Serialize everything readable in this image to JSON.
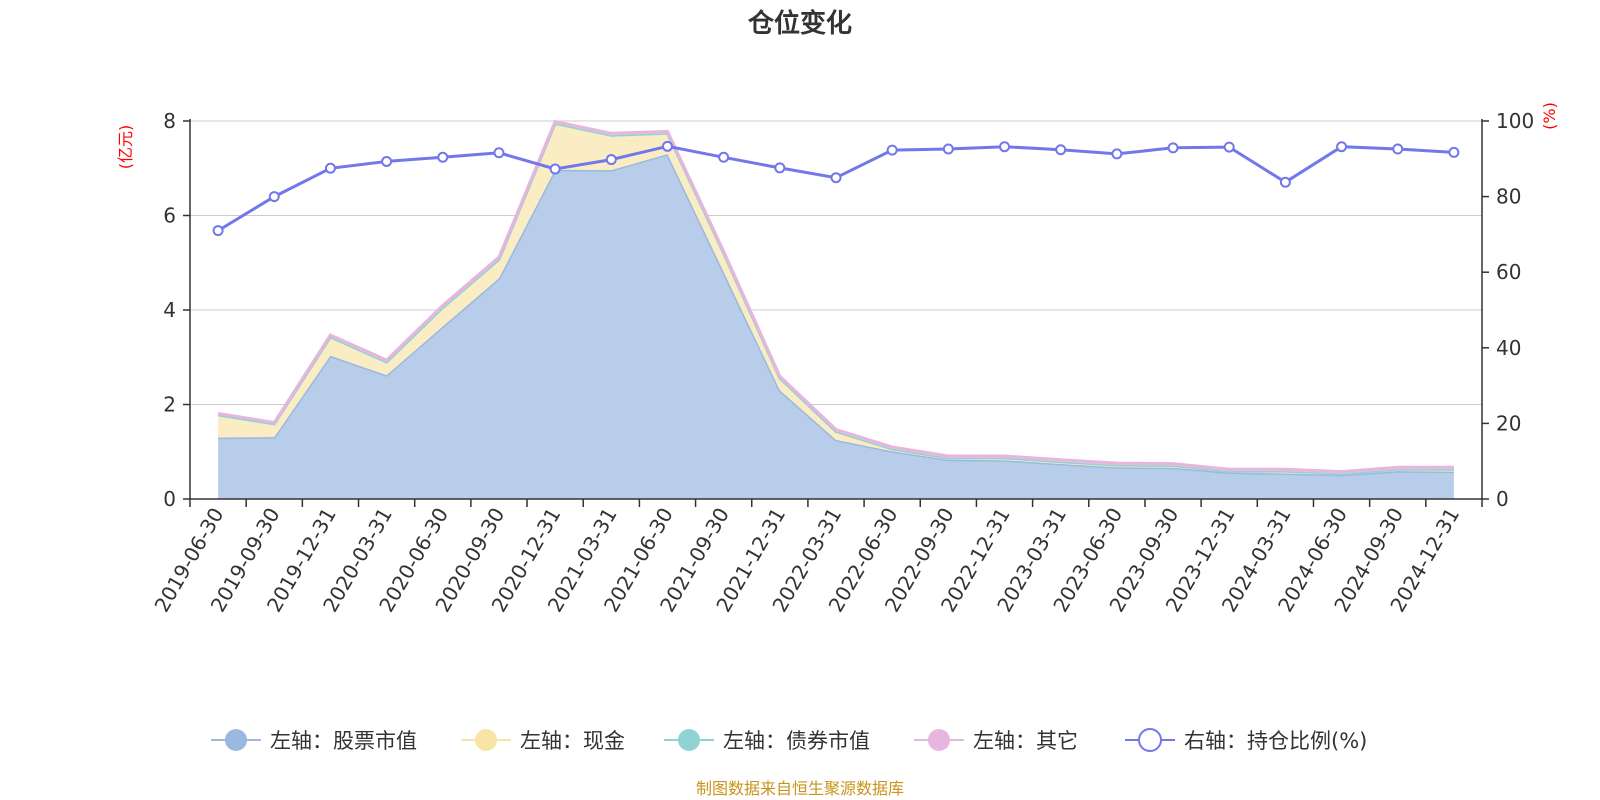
{
  "chart_data": {
    "type": "area",
    "title": "仓位变化",
    "source": "制图数据来自恒生聚源数据库",
    "left_axis": {
      "unit": "(亿元)",
      "ylim": [
        0,
        8
      ],
      "ticks": [
        "0",
        "2",
        "4",
        "6",
        "8"
      ]
    },
    "right_axis": {
      "unit": "(%)",
      "ylim": [
        0,
        100
      ],
      "ticks": [
        "0",
        "20",
        "40",
        "60",
        "80",
        "100"
      ]
    },
    "categories": [
      "2019-06-30",
      "2019-09-30",
      "2019-12-31",
      "2020-03-31",
      "2020-06-30",
      "2020-09-30",
      "2020-12-31",
      "2021-03-31",
      "2021-06-30",
      "2021-09-30",
      "2021-12-31",
      "2022-03-31",
      "2022-06-30",
      "2022-09-30",
      "2022-12-31",
      "2023-03-31",
      "2023-06-30",
      "2023-09-30",
      "2023-12-31",
      "2024-03-31",
      "2024-06-30",
      "2024-09-30",
      "2024-12-31"
    ],
    "series": [
      {
        "name": "左轴：股票市值",
        "axis": "left",
        "type": "area",
        "color": "#9bb8e0",
        "fill": "#b7cdea",
        "values": [
          1.3,
          1.31,
          3.03,
          2.62,
          3.65,
          4.67,
          6.97,
          6.96,
          7.3,
          4.8,
          2.3,
          1.25,
          1.01,
          0.83,
          0.82,
          0.74,
          0.67,
          0.66,
          0.56,
          0.54,
          0.51,
          0.59,
          0.58
        ]
      },
      {
        "name": "左轴：现金",
        "axis": "left",
        "type": "area",
        "color": "#f8e4a6",
        "fill": "#faedc3",
        "values": [
          0.48,
          0.28,
          0.4,
          0.28,
          0.4,
          0.4,
          0.98,
          0.74,
          0.44,
          0.4,
          0.26,
          0.18,
          0.05,
          0.04,
          0.05,
          0.05,
          0.05,
          0.05,
          0.03,
          0.05,
          0.03,
          0.04,
          0.05
        ]
      },
      {
        "name": "左轴：债券市值",
        "axis": "left",
        "type": "area",
        "color": "#8fd3d4",
        "fill": "#a8dedf",
        "values": [
          0,
          0,
          0,
          0,
          0,
          0,
          0,
          0,
          0,
          0,
          0,
          0,
          0,
          0,
          0,
          0,
          0,
          0,
          0,
          0,
          0,
          0,
          0
        ]
      },
      {
        "name": "左轴：其它",
        "axis": "left",
        "type": "area",
        "color": "#e7b5dd",
        "fill": "#efc9e8",
        "values": [
          0.03,
          0.03,
          0.04,
          0.04,
          0.05,
          0.05,
          0.04,
          0.04,
          0.04,
          0.04,
          0.04,
          0.04,
          0.04,
          0.04,
          0.04,
          0.04,
          0.04,
          0.04,
          0.04,
          0.04,
          0.04,
          0.04,
          0.04
        ]
      },
      {
        "name": "右轴：持仓比例(%)",
        "axis": "right",
        "type": "line",
        "color": "#7278ea",
        "values": [
          71,
          80,
          87.5,
          89.3,
          90.4,
          91.6,
          87.3,
          89.8,
          93.3,
          90.4,
          87.6,
          85.0,
          92.3,
          92.6,
          93.2,
          92.4,
          91.3,
          92.9,
          93.1,
          83.8,
          93.2,
          92.6,
          91.7
        ]
      }
    ]
  }
}
